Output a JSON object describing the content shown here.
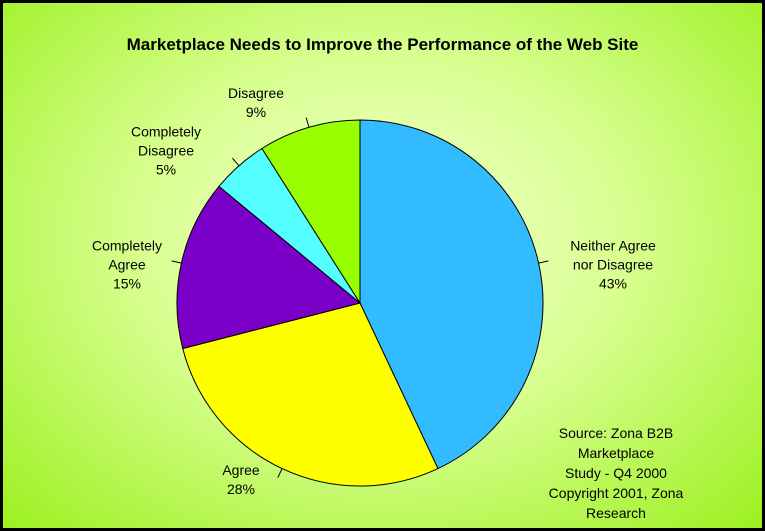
{
  "chart_data": {
    "type": "pie",
    "title": "Marketplace Needs to Improve the Performance of the Web Site",
    "categories": [
      "Neither Agree\nnor Disagree",
      "Agree",
      "Completely\nAgree",
      "Completely\nDisagree",
      "Disagree"
    ],
    "values": [
      43,
      28,
      15,
      5,
      9
    ],
    "value_labels": [
      "43%",
      "28%",
      "15%",
      "5%",
      "9%"
    ],
    "colors": [
      "#33bbff",
      "#ffff00",
      "#7a00c8",
      "#55ffff",
      "#99ff00"
    ],
    "annotation": "Source: Zona B2B Marketplace\nStudy - Q4 2000\nCopyright 2001, Zona\nResearch"
  }
}
